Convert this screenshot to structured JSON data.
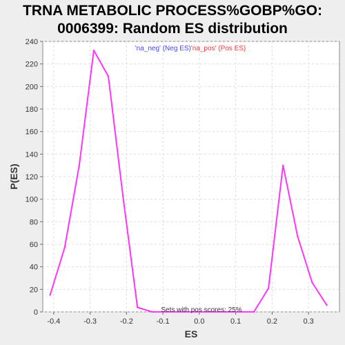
{
  "chart_data": {
    "type": "line",
    "title_line1": "TRNA METABOLIC PROCESS%GOBP%GO:",
    "title_line2": "0006399: Random ES distribution",
    "xlabel": "ES",
    "ylabel": "P(ES)",
    "xlim": [
      -0.43,
      0.385
    ],
    "ylim": [
      0,
      240
    ],
    "x_ticks": [
      -0.4,
      -0.3,
      -0.2,
      -0.1,
      0.0,
      0.1,
      0.2,
      0.3
    ],
    "x_tick_labels": [
      "-0.4",
      "-0.3",
      "-0.2",
      "-0.1",
      "0.0",
      "0.1",
      "0.2",
      "0.3"
    ],
    "y_ticks": [
      0,
      20,
      40,
      60,
      80,
      100,
      120,
      140,
      160,
      180,
      200,
      220,
      240
    ],
    "y_tick_labels": [
      "0",
      "20",
      "40",
      "60",
      "80",
      "100",
      "120",
      "140",
      "160",
      "180",
      "200",
      "220",
      "240"
    ],
    "grid": true,
    "legend_placement": "top-center",
    "legend": [
      {
        "label": "'na_neg' (Neg ES)",
        "color": "#4444ff"
      },
      {
        "label": "'na_pos' (Pos ES)",
        "color": "#ff3333"
      }
    ],
    "annotation": "Sets with pos scores: 25%",
    "series": [
      {
        "color": "#ff33ff",
        "x": [
          -0.41,
          -0.37,
          -0.33,
          -0.29,
          -0.25,
          -0.21,
          -0.17,
          -0.13,
          -0.09,
          -0.05,
          -0.01,
          0.03,
          0.07,
          0.11,
          0.15,
          0.19,
          0.23,
          0.27,
          0.31,
          0.35
        ],
        "y": [
          15,
          57,
          130,
          232,
          209,
          103,
          4,
          0,
          0,
          0,
          0,
          0,
          0,
          0,
          0,
          21,
          130,
          67,
          26,
          6
        ]
      }
    ]
  }
}
